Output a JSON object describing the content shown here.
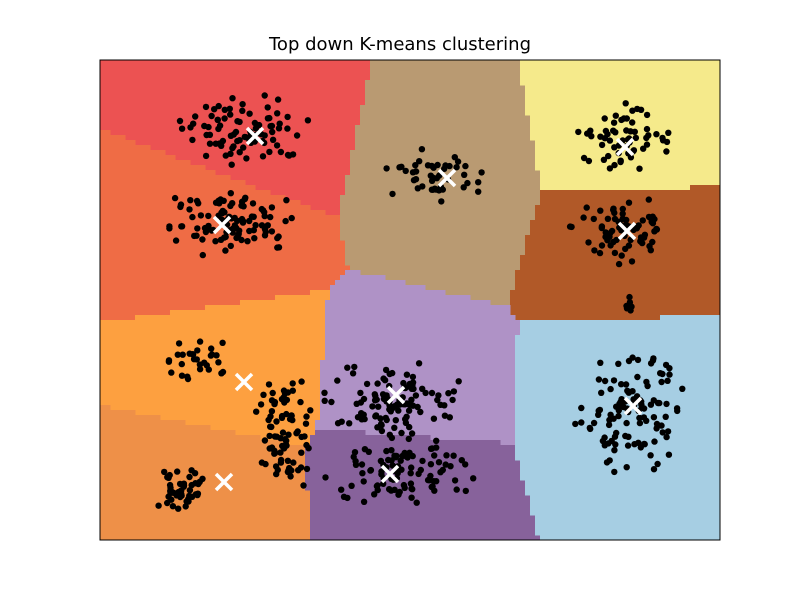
{
  "chart_data": {
    "type": "scatter",
    "title": "Top down K-means clustering",
    "xlabel": "",
    "ylabel": "",
    "grid": false,
    "axis_ticks": "none",
    "centroid_marker": "white-x",
    "point_color": "#000000",
    "regions": [
      {
        "cluster": 1,
        "color": "#ec5252",
        "centroid": [
          255,
          136
        ]
      },
      {
        "cluster": 2,
        "color": "#ef6c45",
        "centroid": [
          222,
          225
        ]
      },
      {
        "cluster": 3,
        "color": "#b99a72",
        "centroid": [
          447,
          178
        ]
      },
      {
        "cluster": 4,
        "color": "#f5ea8b",
        "centroid": [
          625,
          147
        ]
      },
      {
        "cluster": 5,
        "color": "#b15928",
        "centroid": [
          627,
          231
        ]
      },
      {
        "cluster": 6,
        "color": "#fda040",
        "centroid": [
          244,
          382
        ]
      },
      {
        "cluster": 7,
        "color": "#ee9048",
        "centroid": [
          224,
          482
        ]
      },
      {
        "cluster": 8,
        "color": "#af92c6",
        "centroid": [
          396,
          395
        ]
      },
      {
        "cluster": 9,
        "color": "#87629b",
        "centroid": [
          390,
          474
        ]
      },
      {
        "cluster": 10,
        "color": "#a6cee3",
        "centroid": [
          633,
          406
        ]
      }
    ],
    "blobs": [
      {
        "center": [
          243,
          130
        ],
        "spread": [
          68,
          38
        ],
        "count": 85
      },
      {
        "center": [
          228,
          222
        ],
        "spread": [
          75,
          38
        ],
        "count": 100
      },
      {
        "center": [
          437,
          178
        ],
        "spread": [
          55,
          30
        ],
        "count": 45
      },
      {
        "center": [
          625,
          138
        ],
        "spread": [
          52,
          35
        ],
        "count": 60
      },
      {
        "center": [
          625,
          228
        ],
        "spread": [
          58,
          38
        ],
        "count": 70
      },
      {
        "center": [
          628,
          300
        ],
        "spread": [
          5,
          18
        ],
        "count": 8
      },
      {
        "center": [
          196,
          358
        ],
        "spread": [
          40,
          22
        ],
        "count": 30
      },
      {
        "center": [
          286,
          432
        ],
        "spread": [
          35,
          62
        ],
        "count": 80
      },
      {
        "center": [
          180,
          490
        ],
        "spread": [
          30,
          24
        ],
        "count": 45
      },
      {
        "center": [
          395,
          400
        ],
        "spread": [
          75,
          45
        ],
        "count": 110
      },
      {
        "center": [
          395,
          472
        ],
        "spread": [
          85,
          38
        ],
        "count": 95
      },
      {
        "center": [
          632,
          410
        ],
        "spread": [
          58,
          72
        ],
        "count": 110
      }
    ]
  }
}
